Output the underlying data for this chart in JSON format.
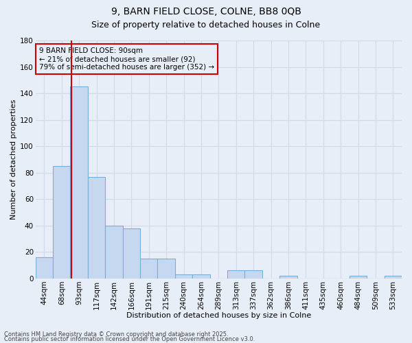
{
  "title1": "9, BARN FIELD CLOSE, COLNE, BB8 0QB",
  "title2": "Size of property relative to detached houses in Colne",
  "xlabel": "Distribution of detached houses by size in Colne",
  "ylabel": "Number of detached properties",
  "categories": [
    "44sqm",
    "68sqm",
    "93sqm",
    "117sqm",
    "142sqm",
    "166sqm",
    "191sqm",
    "215sqm",
    "240sqm",
    "264sqm",
    "289sqm",
    "313sqm",
    "337sqm",
    "362sqm",
    "386sqm",
    "411sqm",
    "435sqm",
    "460sqm",
    "484sqm",
    "509sqm",
    "533sqm"
  ],
  "values": [
    16,
    85,
    145,
    77,
    40,
    38,
    15,
    15,
    3,
    3,
    0,
    6,
    6,
    0,
    2,
    0,
    0,
    0,
    2,
    0,
    2
  ],
  "bar_color": "#c5d8f0",
  "bar_edge_color": "#7aaed6",
  "vline_color": "#cc0000",
  "vline_pos": 1.55,
  "annotation_text_line1": "9 BARN FIELD CLOSE: 90sqm",
  "annotation_text_line2": "← 21% of detached houses are smaller (92)",
  "annotation_text_line3": "79% of semi-detached houses are larger (352) →",
  "annotation_edge_color": "#cc0000",
  "ylim": [
    0,
    180
  ],
  "yticks": [
    0,
    20,
    40,
    60,
    80,
    100,
    120,
    140,
    160,
    180
  ],
  "footer1": "Contains HM Land Registry data © Crown copyright and database right 2025.",
  "footer2": "Contains public sector information licensed under the Open Government Licence v3.0.",
  "bg_color": "#e8eef8",
  "grid_color": "#d0dae8",
  "title_fontsize": 10,
  "subtitle_fontsize": 9,
  "axis_label_fontsize": 8,
  "tick_fontsize": 7.5,
  "footer_fontsize": 6,
  "annotation_fontsize": 7.5
}
